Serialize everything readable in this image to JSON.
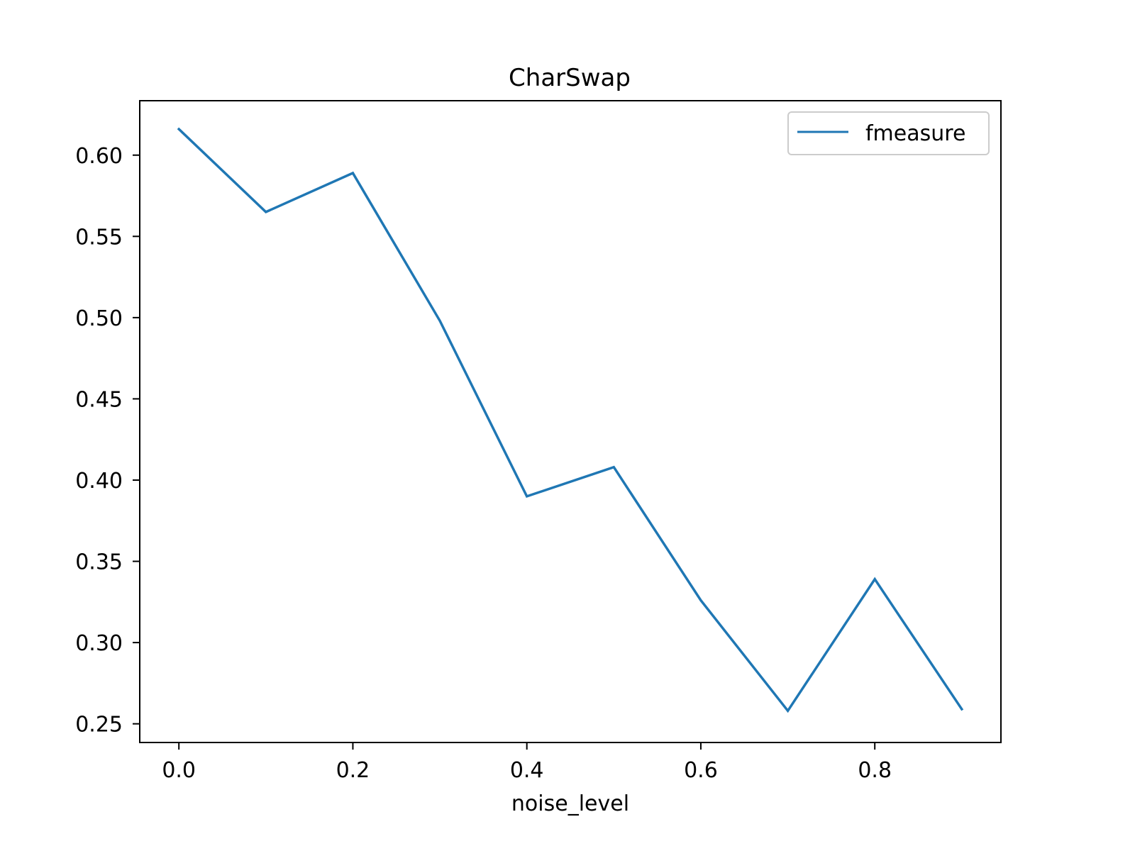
{
  "chart_data": {
    "type": "line",
    "title": "CharSwap",
    "xlabel": "noise_level",
    "ylabel": "",
    "xlim": [
      -0.045,
      0.945
    ],
    "ylim": [
      0.2385,
      0.6335
    ],
    "x_ticks": [
      0.0,
      0.2,
      0.4,
      0.6,
      0.8
    ],
    "x_tick_labels": [
      "0.0",
      "0.2",
      "0.4",
      "0.6",
      "0.8"
    ],
    "y_ticks": [
      0.25,
      0.3,
      0.35,
      0.4,
      0.45,
      0.5,
      0.55,
      0.6
    ],
    "y_tick_labels": [
      "0.25",
      "0.30",
      "0.35",
      "0.40",
      "0.45",
      "0.50",
      "0.55",
      "0.60"
    ],
    "grid": false,
    "legend_position": "top-right",
    "series": [
      {
        "name": "fmeasure",
        "color": "#1f77b4",
        "x": [
          0.0,
          0.1,
          0.2,
          0.3,
          0.4,
          0.5,
          0.6,
          0.7,
          0.8,
          0.9
        ],
        "y": [
          0.616,
          0.565,
          0.589,
          0.498,
          0.39,
          0.408,
          0.326,
          0.258,
          0.339,
          0.259
        ]
      }
    ]
  }
}
